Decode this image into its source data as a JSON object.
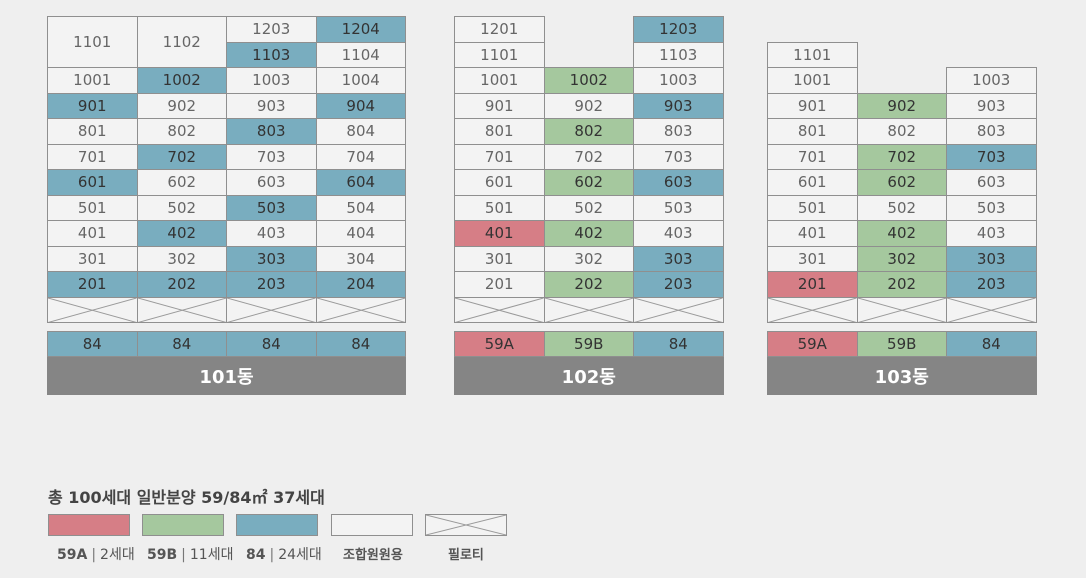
{
  "colors": {
    "t84": "#79adbf",
    "t59a": "#d67e86",
    "t59b": "#a5c89e",
    "union": "#f3f3f3",
    "building_bar": "#858585"
  },
  "buildings": [
    {
      "name": "101동",
      "types": [
        {
          "label": "84",
          "t": "t84"
        },
        {
          "label": "84",
          "t": "t84"
        },
        {
          "label": "84",
          "t": "t84"
        },
        {
          "label": "84",
          "t": "t84"
        }
      ],
      "units": [
        {
          "label": "1101",
          "t": "u",
          "col": 0,
          "row": 0,
          "span": 2
        },
        {
          "label": "1102",
          "t": "u",
          "col": 1,
          "row": 0,
          "span": 2
        },
        {
          "label": "1203",
          "t": "u",
          "col": 2,
          "row": 0
        },
        {
          "label": "1204",
          "t": "t84",
          "col": 3,
          "row": 0
        },
        {
          "label": "1103",
          "t": "t84",
          "col": 2,
          "row": 1
        },
        {
          "label": "1104",
          "t": "u",
          "col": 3,
          "row": 1
        },
        {
          "label": "1001",
          "t": "u",
          "col": 0,
          "row": 2
        },
        {
          "label": "1002",
          "t": "t84",
          "col": 1,
          "row": 2
        },
        {
          "label": "1003",
          "t": "u",
          "col": 2,
          "row": 2
        },
        {
          "label": "1004",
          "t": "u",
          "col": 3,
          "row": 2
        },
        {
          "label": "901",
          "t": "t84",
          "col": 0,
          "row": 3
        },
        {
          "label": "902",
          "t": "u",
          "col": 1,
          "row": 3
        },
        {
          "label": "903",
          "t": "u",
          "col": 2,
          "row": 3
        },
        {
          "label": "904",
          "t": "t84",
          "col": 3,
          "row": 3
        },
        {
          "label": "801",
          "t": "u",
          "col": 0,
          "row": 4
        },
        {
          "label": "802",
          "t": "u",
          "col": 1,
          "row": 4
        },
        {
          "label": "803",
          "t": "t84",
          "col": 2,
          "row": 4
        },
        {
          "label": "804",
          "t": "u",
          "col": 3,
          "row": 4
        },
        {
          "label": "701",
          "t": "u",
          "col": 0,
          "row": 5
        },
        {
          "label": "702",
          "t": "t84",
          "col": 1,
          "row": 5
        },
        {
          "label": "703",
          "t": "u",
          "col": 2,
          "row": 5
        },
        {
          "label": "704",
          "t": "u",
          "col": 3,
          "row": 5
        },
        {
          "label": "601",
          "t": "t84",
          "col": 0,
          "row": 6
        },
        {
          "label": "602",
          "t": "u",
          "col": 1,
          "row": 6
        },
        {
          "label": "603",
          "t": "u",
          "col": 2,
          "row": 6
        },
        {
          "label": "604",
          "t": "t84",
          "col": 3,
          "row": 6
        },
        {
          "label": "501",
          "t": "u",
          "col": 0,
          "row": 7
        },
        {
          "label": "502",
          "t": "u",
          "col": 1,
          "row": 7
        },
        {
          "label": "503",
          "t": "t84",
          "col": 2,
          "row": 7
        },
        {
          "label": "504",
          "t": "u",
          "col": 3,
          "row": 7
        },
        {
          "label": "401",
          "t": "u",
          "col": 0,
          "row": 8
        },
        {
          "label": "402",
          "t": "t84",
          "col": 1,
          "row": 8
        },
        {
          "label": "403",
          "t": "u",
          "col": 2,
          "row": 8
        },
        {
          "label": "404",
          "t": "u",
          "col": 3,
          "row": 8
        },
        {
          "label": "301",
          "t": "u",
          "col": 0,
          "row": 9
        },
        {
          "label": "302",
          "t": "u",
          "col": 1,
          "row": 9
        },
        {
          "label": "303",
          "t": "t84",
          "col": 2,
          "row": 9
        },
        {
          "label": "304",
          "t": "u",
          "col": 3,
          "row": 9
        },
        {
          "label": "201",
          "t": "t84",
          "col": 0,
          "row": 10
        },
        {
          "label": "202",
          "t": "t84",
          "col": 1,
          "row": 10
        },
        {
          "label": "203",
          "t": "t84",
          "col": 2,
          "row": 10
        },
        {
          "label": "204",
          "t": "t84",
          "col": 3,
          "row": 10
        }
      ]
    },
    {
      "name": "102동",
      "types": [
        {
          "label": "59A",
          "t": "t59a"
        },
        {
          "label": "59B",
          "t": "t59b"
        },
        {
          "label": "84",
          "t": "t84"
        }
      ],
      "units": [
        {
          "label": "1201",
          "t": "u",
          "col": 0,
          "row": 0
        },
        {
          "label": "1203",
          "t": "t84",
          "col": 2,
          "row": 0
        },
        {
          "label": "1101",
          "t": "u",
          "col": 0,
          "row": 1
        },
        {
          "label": "1103",
          "t": "u",
          "col": 2,
          "row": 1
        },
        {
          "label": "1001",
          "t": "u",
          "col": 0,
          "row": 2
        },
        {
          "label": "1002",
          "t": "t59b",
          "col": 1,
          "row": 2
        },
        {
          "label": "1003",
          "t": "u",
          "col": 2,
          "row": 2
        },
        {
          "label": "901",
          "t": "u",
          "col": 0,
          "row": 3
        },
        {
          "label": "902",
          "t": "u",
          "col": 1,
          "row": 3
        },
        {
          "label": "903",
          "t": "t84",
          "col": 2,
          "row": 3
        },
        {
          "label": "801",
          "t": "u",
          "col": 0,
          "row": 4
        },
        {
          "label": "802",
          "t": "t59b",
          "col": 1,
          "row": 4
        },
        {
          "label": "803",
          "t": "u",
          "col": 2,
          "row": 4
        },
        {
          "label": "701",
          "t": "u",
          "col": 0,
          "row": 5
        },
        {
          "label": "702",
          "t": "u",
          "col": 1,
          "row": 5
        },
        {
          "label": "703",
          "t": "u",
          "col": 2,
          "row": 5
        },
        {
          "label": "601",
          "t": "u",
          "col": 0,
          "row": 6
        },
        {
          "label": "602",
          "t": "t59b",
          "col": 1,
          "row": 6
        },
        {
          "label": "603",
          "t": "t84",
          "col": 2,
          "row": 6
        },
        {
          "label": "501",
          "t": "u",
          "col": 0,
          "row": 7
        },
        {
          "label": "502",
          "t": "u",
          "col": 1,
          "row": 7
        },
        {
          "label": "503",
          "t": "u",
          "col": 2,
          "row": 7
        },
        {
          "label": "401",
          "t": "t59a",
          "col": 0,
          "row": 8
        },
        {
          "label": "402",
          "t": "t59b",
          "col": 1,
          "row": 8
        },
        {
          "label": "403",
          "t": "u",
          "col": 2,
          "row": 8
        },
        {
          "label": "301",
          "t": "u",
          "col": 0,
          "row": 9
        },
        {
          "label": "302",
          "t": "u",
          "col": 1,
          "row": 9
        },
        {
          "label": "303",
          "t": "t84",
          "col": 2,
          "row": 9
        },
        {
          "label": "201",
          "t": "u",
          "col": 0,
          "row": 10
        },
        {
          "label": "202",
          "t": "t59b",
          "col": 1,
          "row": 10
        },
        {
          "label": "203",
          "t": "t84",
          "col": 2,
          "row": 10
        }
      ]
    },
    {
      "name": "103동",
      "types": [
        {
          "label": "59A",
          "t": "t59a"
        },
        {
          "label": "59B",
          "t": "t59b"
        },
        {
          "label": "84",
          "t": "t84"
        }
      ],
      "units": [
        {
          "label": "1101",
          "t": "u",
          "col": 0,
          "row": 1
        },
        {
          "label": "1001",
          "t": "u",
          "col": 0,
          "row": 2
        },
        {
          "label": "1003",
          "t": "u",
          "col": 2,
          "row": 2
        },
        {
          "label": "901",
          "t": "u",
          "col": 0,
          "row": 3
        },
        {
          "label": "902",
          "t": "t59b",
          "col": 1,
          "row": 3
        },
        {
          "label": "903",
          "t": "u",
          "col": 2,
          "row": 3
        },
        {
          "label": "801",
          "t": "u",
          "col": 0,
          "row": 4
        },
        {
          "label": "802",
          "t": "u",
          "col": 1,
          "row": 4
        },
        {
          "label": "803",
          "t": "u",
          "col": 2,
          "row": 4
        },
        {
          "label": "701",
          "t": "u",
          "col": 0,
          "row": 5
        },
        {
          "label": "702",
          "t": "t59b",
          "col": 1,
          "row": 5
        },
        {
          "label": "703",
          "t": "t84",
          "col": 2,
          "row": 5
        },
        {
          "label": "601",
          "t": "u",
          "col": 0,
          "row": 6
        },
        {
          "label": "602",
          "t": "t59b",
          "col": 1,
          "row": 6
        },
        {
          "label": "603",
          "t": "u",
          "col": 2,
          "row": 6
        },
        {
          "label": "501",
          "t": "u",
          "col": 0,
          "row": 7
        },
        {
          "label": "502",
          "t": "u",
          "col": 1,
          "row": 7
        },
        {
          "label": "503",
          "t": "u",
          "col": 2,
          "row": 7
        },
        {
          "label": "401",
          "t": "u",
          "col": 0,
          "row": 8
        },
        {
          "label": "402",
          "t": "t59b",
          "col": 1,
          "row": 8
        },
        {
          "label": "403",
          "t": "u",
          "col": 2,
          "row": 8
        },
        {
          "label": "301",
          "t": "u",
          "col": 0,
          "row": 9
        },
        {
          "label": "302",
          "t": "t59b",
          "col": 1,
          "row": 9
        },
        {
          "label": "303",
          "t": "t84",
          "col": 2,
          "row": 9
        },
        {
          "label": "201",
          "t": "t59a",
          "col": 0,
          "row": 10
        },
        {
          "label": "202",
          "t": "t59b",
          "col": 1,
          "row": 10
        },
        {
          "label": "203",
          "t": "t84",
          "col": 2,
          "row": 10
        }
      ]
    }
  ],
  "summary": "총 100세대 일반분양 59/84㎡ 37세대",
  "legend": [
    {
      "type": "59A",
      "sep": "|",
      "count": "2세대",
      "t": "t59a"
    },
    {
      "type": "59B",
      "sep": "|",
      "count": "11세대",
      "t": "t59b"
    },
    {
      "type": "84",
      "sep": "|",
      "count": "24세대",
      "t": "t84"
    },
    {
      "type": "조합원원용",
      "sep": "",
      "count": "",
      "t": "u"
    },
    {
      "type": "필로티",
      "sep": "",
      "count": "",
      "t": "pil"
    }
  ]
}
